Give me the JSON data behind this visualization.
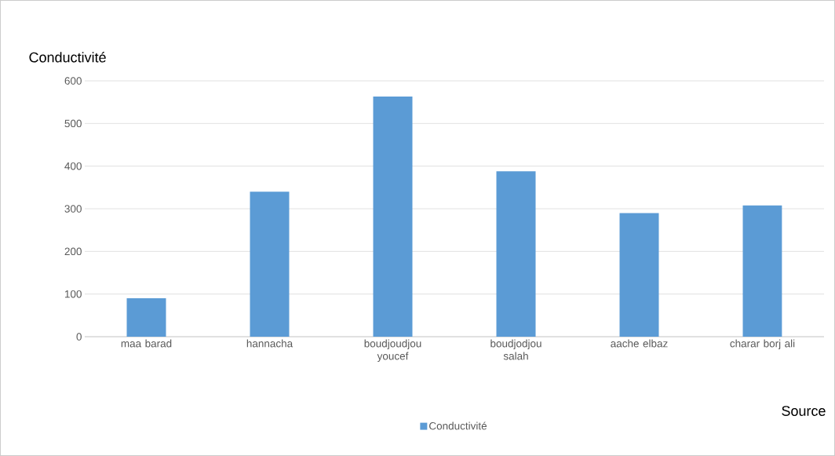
{
  "chart_data": {
    "type": "bar",
    "ylabel": "Conductivité",
    "xlabel": "Source",
    "categories": [
      "maa barad",
      "hannacha",
      "boudjoudjou youcef",
      "boudjodjou salah",
      "aache elbaz",
      "charar borj ali"
    ],
    "series": [
      {
        "name": "Conductivité",
        "color": "#5b9bd5",
        "values": [
          90,
          340,
          563,
          388,
          290,
          308
        ]
      }
    ],
    "ylim": [
      0,
      600
    ],
    "yticks": [
      0,
      100,
      200,
      300,
      400,
      500,
      600
    ],
    "grid": "y",
    "legend": "bottom"
  }
}
